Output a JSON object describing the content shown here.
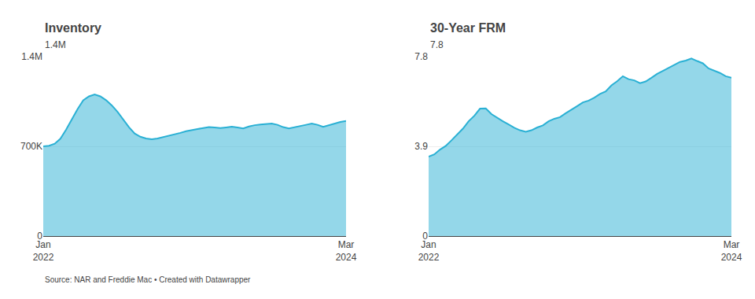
{
  "chart_data": [
    {
      "type": "area",
      "title": "Inventory",
      "subtitle": "1.4M",
      "categories": [
        "Jan\n2022",
        null,
        null,
        null,
        null,
        null,
        null,
        null,
        null,
        null,
        null,
        null,
        null,
        null,
        null,
        null,
        null,
        null,
        null,
        null,
        null,
        null,
        null,
        null,
        null,
        null,
        null,
        null,
        null,
        null,
        null,
        null,
        null,
        null,
        null,
        null,
        null,
        null,
        null,
        null,
        null,
        null,
        null,
        null,
        null,
        null,
        null,
        null,
        null,
        null,
        null,
        null,
        null,
        "Mar\n2024"
      ],
      "values": [
        700000,
        705000,
        720000,
        760000,
        830000,
        910000,
        990000,
        1060000,
        1090000,
        1105000,
        1090000,
        1060000,
        1020000,
        970000,
        910000,
        850000,
        800000,
        775000,
        762000,
        755000,
        762000,
        772000,
        782000,
        793000,
        805000,
        818000,
        828000,
        835000,
        843000,
        850000,
        848000,
        843000,
        848000,
        853000,
        848000,
        840000,
        855000,
        865000,
        870000,
        875000,
        878000,
        868000,
        850000,
        840000,
        848000,
        858000,
        868000,
        878000,
        868000,
        852000,
        865000,
        878000,
        890000,
        898000
      ],
      "color": "#2ab0d4",
      "ylim": [
        0,
        1400000
      ],
      "yticks": [
        0,
        {
          "value": 700000,
          "label": "700K"
        },
        {
          "value": 1400000,
          "label": "1.4M"
        }
      ],
      "grid": true,
      "annotations": [
        "Source: NAR and Freddie Mac • Created with Datawrapper"
      ]
    },
    {
      "type": "area",
      "title": "30-Year FRM",
      "subtitle": "7.8",
      "categories": [
        "Jan\n2022",
        null,
        null,
        null,
        null,
        null,
        null,
        null,
        null,
        null,
        null,
        null,
        null,
        null,
        null,
        null,
        null,
        null,
        null,
        null,
        null,
        null,
        null,
        null,
        null,
        null,
        null,
        null,
        null,
        null,
        null,
        null,
        null,
        null,
        null,
        null,
        null,
        null,
        null,
        null,
        null,
        null,
        null,
        null,
        null,
        null,
        null,
        null,
        null,
        null,
        null,
        null,
        null,
        "Mar\n2024"
      ],
      "values": [
        3.45,
        3.55,
        3.76,
        3.92,
        4.16,
        4.42,
        4.67,
        4.99,
        5.23,
        5.54,
        5.55,
        5.3,
        5.13,
        4.99,
        4.85,
        4.71,
        4.6,
        4.53,
        4.6,
        4.72,
        4.81,
        4.99,
        5.1,
        5.17,
        5.34,
        5.51,
        5.65,
        5.81,
        5.89,
        6.02,
        6.18,
        6.29,
        6.55,
        6.73,
        6.95,
        6.82,
        6.77,
        6.65,
        6.72,
        6.88,
        7.05,
        7.18,
        7.31,
        7.44,
        7.57,
        7.63,
        7.72,
        7.61,
        7.51,
        7.29,
        7.18,
        7.09,
        6.95,
        6.88
      ],
      "color": "#2ab0d4",
      "ylim": [
        0,
        7.8
      ],
      "yticks": [
        0,
        3.9,
        7.8
      ],
      "grid": true
    }
  ]
}
